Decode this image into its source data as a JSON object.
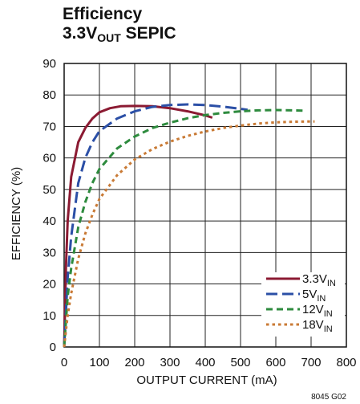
{
  "chart_data": {
    "type": "line",
    "title": {
      "line1": "Efficiency",
      "line2_main": "3.3V",
      "line2_sub": "OUT",
      "line2_tail": " SEPIC"
    },
    "xlabel": "OUTPUT CURRENT (mA)",
    "ylabel": "EFFICIENCY (%)",
    "xlim": [
      0,
      800
    ],
    "ylim": [
      0,
      90
    ],
    "x_ticks": [
      "0",
      "100",
      "200",
      "300",
      "400",
      "500",
      "600",
      "700",
      "800"
    ],
    "y_ticks": [
      "0",
      "10",
      "20",
      "30",
      "40",
      "50",
      "60",
      "70",
      "80",
      "90"
    ],
    "grid": true,
    "legend_position": "bottom-right",
    "footnote": "8045 G02",
    "series": [
      {
        "name": "3.3V",
        "name_sub": "IN",
        "color": "#8b1a32",
        "dash": "solid",
        "x": [
          0,
          5,
          10,
          20,
          40,
          60,
          80,
          100,
          130,
          160,
          200,
          250,
          300,
          350,
          400,
          420
        ],
        "y": [
          0,
          25,
          40,
          54,
          65,
          69.5,
          72.5,
          74.5,
          75.8,
          76.4,
          76.5,
          76.4,
          75.8,
          74.8,
          73.5,
          72.8
        ]
      },
      {
        "name": "5V",
        "name_sub": "IN",
        "color": "#2b4fa6",
        "dash": "long",
        "x": [
          0,
          10,
          20,
          40,
          60,
          80,
          100,
          150,
          200,
          250,
          300,
          350,
          400,
          450,
          500,
          520
        ],
        "y": [
          0,
          22,
          35,
          52,
          60,
          65,
          68.5,
          72.5,
          74.8,
          76.2,
          76.8,
          77,
          76.8,
          76.3,
          75.6,
          75.3
        ]
      },
      {
        "name": "12V",
        "name_sub": "IN",
        "color": "#2e8b3e",
        "dash": "medium",
        "x": [
          0,
          10,
          20,
          40,
          60,
          80,
          100,
          150,
          200,
          250,
          300,
          350,
          400,
          450,
          500,
          550,
          600,
          650,
          680
        ],
        "y": [
          0,
          16,
          25,
          38,
          46,
          52,
          56.5,
          63,
          66.8,
          69.5,
          71.2,
          72.6,
          73.6,
          74.3,
          74.8,
          75.1,
          75.2,
          75.1,
          75
        ]
      },
      {
        "name": "18V",
        "name_sub": "IN",
        "color": "#c97a35",
        "dash": "dotted",
        "x": [
          0,
          10,
          20,
          40,
          60,
          80,
          100,
          150,
          200,
          250,
          300,
          350,
          400,
          450,
          500,
          550,
          600,
          650,
          700,
          710
        ],
        "y": [
          0,
          10,
          17,
          28,
          36,
          42,
          47,
          54.5,
          59.5,
          62.8,
          65.2,
          67,
          68.4,
          69.5,
          70.3,
          70.9,
          71.3,
          71.5,
          71.6,
          71.6
        ]
      }
    ]
  }
}
